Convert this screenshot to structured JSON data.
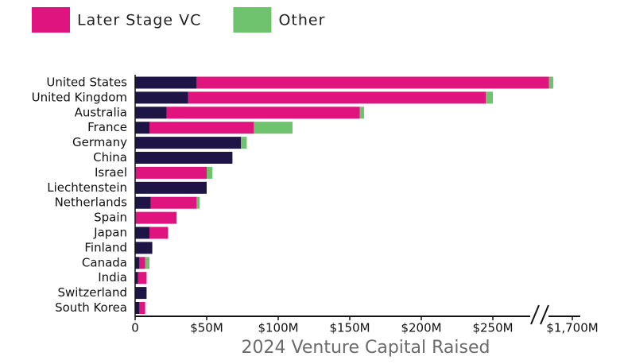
{
  "chart_data": {
    "type": "stacked-barh",
    "categories": [
      "United States",
      "United Kingdom",
      "Australia",
      "France",
      "Germany",
      "China",
      "Israel",
      "Liechtenstein",
      "Netherlands",
      "Spain",
      "Japan",
      "Finland",
      "Canada",
      "India",
      "Switzerland",
      "South Korea"
    ],
    "series": [
      {
        "color": "#1e1446",
        "values": [
          43,
          37,
          22,
          10,
          74,
          68,
          0,
          50,
          11,
          0,
          10,
          12,
          3,
          2,
          8,
          3
        ]
      },
      {
        "name": "Later Stage VC",
        "color": "#e0147f",
        "values": [
          1608,
          208,
          135,
          73,
          0,
          0,
          50,
          0,
          32,
          29,
          13,
          0,
          4,
          6,
          0,
          4
        ]
      },
      {
        "name": "Other",
        "color": "#6fc36f",
        "values": [
          9,
          5,
          3,
          27,
          4,
          0,
          4,
          0,
          2,
          0,
          0,
          0,
          3,
          0,
          0,
          0
        ]
      }
    ],
    "xlim": [
      0,
      1700
    ],
    "xbreak": [
      280,
      1640
    ],
    "xticks": [
      0,
      {
        "value": 50,
        "label": "$50M"
      },
      {
        "value": 100,
        "label": "$100M"
      },
      {
        "value": 150,
        "label": "$150M"
      },
      {
        "value": 200,
        "label": "$200M"
      },
      {
        "value": 250,
        "label": "$250M"
      },
      {
        "value": 1700,
        "label": "$1,700M"
      }
    ],
    "xlabel": "2024 Venture Capital Raised"
  }
}
